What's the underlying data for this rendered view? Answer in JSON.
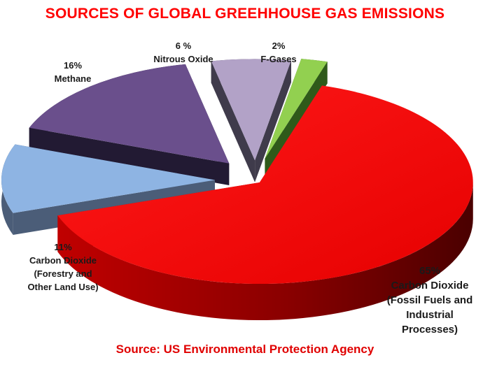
{
  "title": "SOURCES OF GLOBAL GREEHHOUSE GAS EMISSIONS",
  "source": "Source: US Environmental Protection Agency",
  "chart_data": {
    "type": "pie",
    "style": "3d-exploded",
    "title": "SOURCES OF GLOBAL GREEHHOUSE GAS EMISSIONS",
    "slices": [
      {
        "value": 65,
        "percent_label": "65%",
        "lines": [
          "Carbon Dioxide",
          "(Fossil Fuels and",
          "Industrial",
          "Processes)"
        ],
        "color": "#ff0000"
      },
      {
        "value": 11,
        "percent_label": "11%",
        "lines": [
          "Carbon Dioxide",
          "(Forestry and",
          "Other Land Use)"
        ],
        "color": "#8eb4e3"
      },
      {
        "value": 16,
        "percent_label": "16%",
        "lines": [
          "Methane"
        ],
        "color": "#6a4f8c"
      },
      {
        "value": 6,
        "percent_label": "6 %",
        "lines": [
          "Nitrous Oxide"
        ],
        "color": "#b2a2c7"
      },
      {
        "value": 2,
        "percent_label": "2%",
        "lines": [
          "F-Gases"
        ],
        "color": "#92d050"
      }
    ],
    "legend": "none"
  }
}
